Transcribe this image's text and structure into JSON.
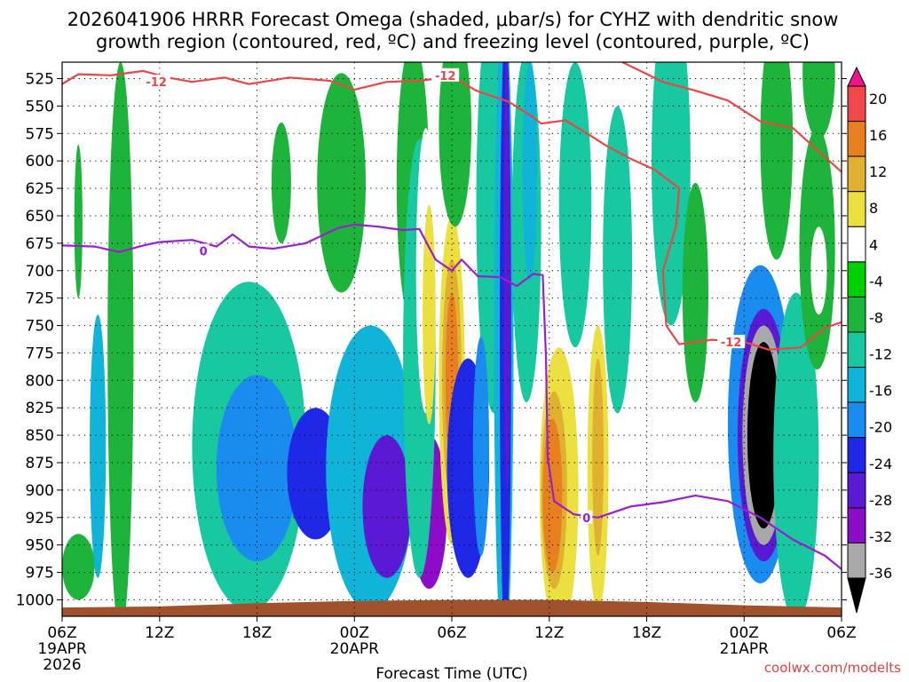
{
  "title_line1": "2026041906 HRRR Forecast Omega (shaded, μbar/s) for CYHZ with dendritic snow",
  "title_line2": "growth region (contoured, red, ºC) and freezing level (contoured, purple, ºC)",
  "watermark": "coolwx.com/modelts",
  "colors": {
    "dgz_line": "#ee4444",
    "freezing_line": "#9a1fd0",
    "terrain": "#a0522d"
  },
  "chart_data": {
    "type": "heatmap",
    "xlabel": "Forecast Time (UTC)",
    "x_range_hours": [
      0,
      48
    ],
    "y_range_hpa": [
      510,
      1015
    ],
    "y_ticks": [
      525,
      550,
      575,
      600,
      625,
      650,
      675,
      700,
      725,
      750,
      775,
      800,
      825,
      850,
      875,
      900,
      925,
      950,
      975,
      1000
    ],
    "x_ticks": [
      {
        "hour": 0,
        "label": "06Z",
        "date": "19APR",
        "year": "2026"
      },
      {
        "hour": 6,
        "label": "12Z",
        "date": "",
        "year": ""
      },
      {
        "hour": 12,
        "label": "18Z",
        "date": "",
        "year": ""
      },
      {
        "hour": 18,
        "label": "00Z",
        "date": "20APR",
        "year": ""
      },
      {
        "hour": 24,
        "label": "06Z",
        "date": "",
        "year": ""
      },
      {
        "hour": 30,
        "label": "12Z",
        "date": "",
        "year": ""
      },
      {
        "hour": 36,
        "label": "18Z",
        "date": "",
        "year": ""
      },
      {
        "hour": 42,
        "label": "00Z",
        "date": "21APR",
        "year": ""
      },
      {
        "hour": 48,
        "label": "06Z",
        "date": "",
        "year": ""
      }
    ],
    "grid": true,
    "colorbar": {
      "levels": [
        -36,
        -32,
        -28,
        -24,
        -20,
        -16,
        -12,
        -8,
        -4,
        4,
        8,
        12,
        16,
        20
      ],
      "colors": [
        "#000000",
        "#a8a8a8",
        "#8c0cc8",
        "#5a1ad4",
        "#1f28e6",
        "#1a8cf0",
        "#10b4d8",
        "#18c8a0",
        "#1eb43c",
        "#00d000",
        "#ffffff",
        "#ece040",
        "#e0b030",
        "#e88020",
        "#f04848",
        "#f0148c"
      ]
    },
    "omega_cells": [
      {
        "t": 2.2,
        "p": 860,
        "dt": 1.0,
        "dp": 240,
        "v": -14
      },
      {
        "t": 3.6,
        "p": 850,
        "dt": 0.9,
        "dp": 210,
        "v": -22
      },
      {
        "t": 3.6,
        "p": 850,
        "dt": 0.4,
        "dp": 120,
        "v": -36
      },
      {
        "t": 3.6,
        "p": 770,
        "dt": 1.6,
        "dp": 520,
        "v": -6
      },
      {
        "t": 1.0,
        "p": 655,
        "dt": 0.5,
        "dp": 140,
        "v": -6
      },
      {
        "t": 1.0,
        "p": 970,
        "dt": 2.0,
        "dp": 60,
        "v": -6
      },
      {
        "t": 5.6,
        "p": 870,
        "dt": 0.6,
        "dp": 110,
        "v": 6
      },
      {
        "t": 11.5,
        "p": 860,
        "dt": 7.0,
        "dp": 300,
        "v": -10
      },
      {
        "t": 12.0,
        "p": 880,
        "dt": 5.0,
        "dp": 170,
        "v": -16
      },
      {
        "t": 15.6,
        "p": 885,
        "dt": 3.5,
        "dp": 120,
        "v": -22
      },
      {
        "t": 19.0,
        "p": 880,
        "dt": 5.5,
        "dp": 260,
        "v": -14
      },
      {
        "t": 20.0,
        "p": 915,
        "dt": 3.0,
        "dp": 130,
        "v": -24
      },
      {
        "t": 22.6,
        "p": 920,
        "dt": 2.2,
        "dp": 140,
        "v": -28
      },
      {
        "t": 13.5,
        "p": 620,
        "dt": 1.2,
        "dp": 110,
        "v": -6
      },
      {
        "t": 17.2,
        "p": 620,
        "dt": 3.0,
        "dp": 200,
        "v": -6
      },
      {
        "t": 19.5,
        "p": 690,
        "dt": 0.6,
        "dp": 80,
        "v": 6
      },
      {
        "t": 21.6,
        "p": 620,
        "dt": 2.0,
        "dp": 260,
        "v": -6
      },
      {
        "t": 22.0,
        "p": 780,
        "dt": 2.0,
        "dp": 400,
        "v": -10
      },
      {
        "t": 22.4,
        "p": 700,
        "dt": 1.2,
        "dp": 260,
        "v": 6
      },
      {
        "t": 22.6,
        "p": 740,
        "dt": 0.8,
        "dp": 200,
        "v": 10
      },
      {
        "t": 24.0,
        "p": 800,
        "dt": 1.6,
        "dp": 300,
        "v": 10
      },
      {
        "t": 24.0,
        "p": 800,
        "dt": 1.2,
        "dp": 220,
        "v": 16
      },
      {
        "t": 24.0,
        "p": 800,
        "dt": 0.8,
        "dp": 160,
        "v": 20
      },
      {
        "t": 25.0,
        "p": 880,
        "dt": 2.6,
        "dp": 200,
        "v": -20
      },
      {
        "t": 24.2,
        "p": 570,
        "dt": 2.0,
        "dp": 180,
        "v": -6
      },
      {
        "t": 26.6,
        "p": 640,
        "dt": 2.2,
        "dp": 380,
        "v": -8
      },
      {
        "t": 26.4,
        "p": 600,
        "dt": 1.4,
        "dp": 320,
        "v": -10
      },
      {
        "t": 25.8,
        "p": 860,
        "dt": 1.0,
        "dp": 200,
        "v": -16
      },
      {
        "t": 27.2,
        "p": 760,
        "dt": 1.2,
        "dp": 600,
        "v": -14
      },
      {
        "t": 27.3,
        "p": 760,
        "dt": 0.7,
        "dp": 560,
        "v": -20
      },
      {
        "t": 27.4,
        "p": 700,
        "dt": 0.4,
        "dp": 400,
        "v": -26
      },
      {
        "t": 28.6,
        "p": 660,
        "dt": 1.8,
        "dp": 320,
        "v": -8
      },
      {
        "t": 28.8,
        "p": 610,
        "dt": 0.9,
        "dp": 200,
        "v": -12
      },
      {
        "t": 30.6,
        "p": 900,
        "dt": 2.4,
        "dp": 260,
        "v": 10
      },
      {
        "t": 30.3,
        "p": 900,
        "dt": 1.6,
        "dp": 180,
        "v": 16
      },
      {
        "t": 30.2,
        "p": 905,
        "dt": 1.2,
        "dp": 140,
        "v": 20
      },
      {
        "t": 33.0,
        "p": 885,
        "dt": 2.2,
        "dp": 300,
        "v": 6
      },
      {
        "t": 33.0,
        "p": 880,
        "dt": 1.3,
        "dp": 260,
        "v": 10
      },
      {
        "t": 33.0,
        "p": 870,
        "dt": 0.7,
        "dp": 180,
        "v": 16
      },
      {
        "t": 36.0,
        "p": 920,
        "dt": 4.0,
        "dp": 140,
        "v": 6
      },
      {
        "t": 31.6,
        "p": 640,
        "dt": 2.0,
        "dp": 260,
        "v": -8
      },
      {
        "t": 34.2,
        "p": 690,
        "dt": 1.8,
        "dp": 280,
        "v": -8
      },
      {
        "t": 37.5,
        "p": 600,
        "dt": 2.4,
        "dp": 300,
        "v": -8
      },
      {
        "t": 39.0,
        "p": 720,
        "dt": 1.6,
        "dp": 200,
        "v": -6
      },
      {
        "t": 43.0,
        "p": 840,
        "dt": 4.0,
        "dp": 290,
        "v": -16
      },
      {
        "t": 43.2,
        "p": 850,
        "dt": 3.2,
        "dp": 230,
        "v": -24
      },
      {
        "t": 43.2,
        "p": 850,
        "dt": 2.6,
        "dp": 200,
        "v": -32
      },
      {
        "t": 43.2,
        "p": 850,
        "dt": 2.0,
        "dp": 170,
        "v": -36
      },
      {
        "t": 45.2,
        "p": 870,
        "dt": 2.8,
        "dp": 300,
        "v": -8
      },
      {
        "t": 44.0,
        "p": 580,
        "dt": 2.0,
        "dp": 220,
        "v": -6
      },
      {
        "t": 46.6,
        "p": 520,
        "dt": 2.0,
        "dp": 120,
        "v": -6
      },
      {
        "t": 46.5,
        "p": 680,
        "dt": 2.2,
        "dp": 220,
        "v": -6
      },
      {
        "t": 46.6,
        "p": 700,
        "dt": 1.0,
        "dp": 80,
        "v": 6
      }
    ],
    "dgz_minus12_upper": [
      {
        "t": 0,
        "p": 530
      },
      {
        "t": 1.0,
        "p": 521
      },
      {
        "t": 3.0,
        "p": 522
      },
      {
        "t": 5.0,
        "p": 518
      },
      {
        "t": 6.5,
        "p": 524
      },
      {
        "t": 8.0,
        "p": 528
      },
      {
        "t": 10.0,
        "p": 524
      },
      {
        "t": 11.5,
        "p": 530
      },
      {
        "t": 14.0,
        "p": 524
      },
      {
        "t": 16.5,
        "p": 527
      },
      {
        "t": 18.0,
        "p": 535
      },
      {
        "t": 20.0,
        "p": 528
      },
      {
        "t": 22.0,
        "p": 527
      },
      {
        "t": 24.0,
        "p": 523
      },
      {
        "t": 25.5,
        "p": 536
      },
      {
        "t": 27.5,
        "p": 546
      },
      {
        "t": 29.0,
        "p": 560
      },
      {
        "t": 29.5,
        "p": 566
      },
      {
        "t": 31.0,
        "p": 563
      },
      {
        "t": 32.0,
        "p": 572
      },
      {
        "t": 33.5,
        "p": 586
      },
      {
        "t": 35.0,
        "p": 598
      },
      {
        "t": 36.5,
        "p": 608
      },
      {
        "t": 38.0,
        "p": 625
      },
      {
        "t": 37.8,
        "p": 660
      },
      {
        "t": 37.0,
        "p": 700
      },
      {
        "t": 37.2,
        "p": 750
      },
      {
        "t": 38.0,
        "p": 767
      },
      {
        "t": 40.0,
        "p": 763
      },
      {
        "t": 42.0,
        "p": 765
      },
      {
        "t": 43.5,
        "p": 772
      },
      {
        "t": 45.5,
        "p": 770
      },
      {
        "t": 47.0,
        "p": 752
      },
      {
        "t": 48,
        "p": 747
      }
    ],
    "dgz_minus12_top": [
      {
        "t": 34.5,
        "p": 510
      },
      {
        "t": 37.0,
        "p": 528
      },
      {
        "t": 39.0,
        "p": 536
      },
      {
        "t": 41.0,
        "p": 545
      },
      {
        "t": 43.0,
        "p": 564
      },
      {
        "t": 45.0,
        "p": 570
      },
      {
        "t": 46.5,
        "p": 590
      },
      {
        "t": 48,
        "p": 610
      }
    ],
    "freezing_level": [
      {
        "t": 0,
        "p": 677
      },
      {
        "t": 2.0,
        "p": 678
      },
      {
        "t": 3.5,
        "p": 683
      },
      {
        "t": 5.0,
        "p": 677
      },
      {
        "t": 6.0,
        "p": 674
      },
      {
        "t": 8.0,
        "p": 672
      },
      {
        "t": 9.5,
        "p": 678
      },
      {
        "t": 10.5,
        "p": 667
      },
      {
        "t": 11.5,
        "p": 678
      },
      {
        "t": 13.0,
        "p": 680
      },
      {
        "t": 15.0,
        "p": 675
      },
      {
        "t": 16.0,
        "p": 668
      },
      {
        "t": 17.0,
        "p": 661
      },
      {
        "t": 18.0,
        "p": 658
      },
      {
        "t": 19.5,
        "p": 660
      },
      {
        "t": 21.0,
        "p": 663
      },
      {
        "t": 22.0,
        "p": 662
      },
      {
        "t": 23.0,
        "p": 690
      },
      {
        "t": 24.0,
        "p": 700
      },
      {
        "t": 24.6,
        "p": 690
      },
      {
        "t": 25.6,
        "p": 705
      },
      {
        "t": 27.0,
        "p": 706
      },
      {
        "t": 28.0,
        "p": 714
      },
      {
        "t": 29.0,
        "p": 703
      },
      {
        "t": 29.6,
        "p": 704
      },
      {
        "t": 29.8,
        "p": 780
      },
      {
        "t": 29.9,
        "p": 870
      },
      {
        "t": 30.3,
        "p": 910
      },
      {
        "t": 31.5,
        "p": 922
      },
      {
        "t": 33.0,
        "p": 925
      },
      {
        "t": 35.0,
        "p": 915
      },
      {
        "t": 37.0,
        "p": 911
      },
      {
        "t": 39.0,
        "p": 905
      },
      {
        "t": 41.0,
        "p": 910
      },
      {
        "t": 43.0,
        "p": 925
      },
      {
        "t": 45.0,
        "p": 945
      },
      {
        "t": 47.0,
        "p": 960
      },
      {
        "t": 48,
        "p": 972
      }
    ],
    "contour_labels": [
      {
        "t": 5.8,
        "p": 528,
        "text": "-12",
        "series": "dgz"
      },
      {
        "t": 23.6,
        "p": 522,
        "text": "-12",
        "series": "dgz"
      },
      {
        "t": 41.2,
        "p": 765,
        "text": "-12",
        "series": "dgz"
      },
      {
        "t": 8.7,
        "p": 682,
        "text": "0",
        "series": "frz"
      },
      {
        "t": 32.3,
        "p": 925,
        "text": "0",
        "series": "frz"
      }
    ],
    "terrain_top_hpa": [
      {
        "t": 0,
        "p": 1007
      },
      {
        "t": 6,
        "p": 1006
      },
      {
        "t": 12,
        "p": 1003
      },
      {
        "t": 18,
        "p": 1001
      },
      {
        "t": 24,
        "p": 1000
      },
      {
        "t": 30,
        "p": 1000
      },
      {
        "t": 36,
        "p": 1002
      },
      {
        "t": 42,
        "p": 1005
      },
      {
        "t": 48,
        "p": 1007
      }
    ]
  }
}
